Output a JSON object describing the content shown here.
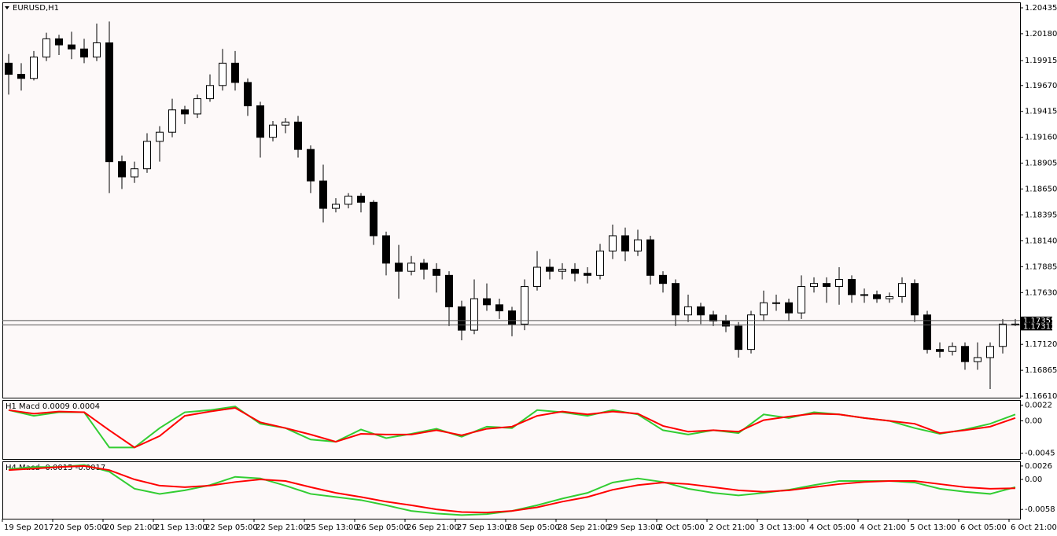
{
  "chart_data": [
    {
      "type": "candlestick",
      "title": "EURUSD,H1",
      "categories": [
        "19 Sep 2017",
        null,
        null,
        null,
        "20 Sep 05:00",
        null,
        null,
        null,
        "20 Sep 21:00",
        null,
        null,
        null,
        "21 Sep 13:00",
        null,
        null,
        null,
        "22 Sep 05:00",
        null,
        null,
        null,
        "22 Sep 21:00",
        null,
        null,
        null,
        "25 Sep 13:00",
        null,
        null,
        null,
        "26 Sep 05:00",
        null,
        null,
        null,
        "26 Sep 21:00",
        null,
        null,
        null,
        "27 Sep 13:00",
        null,
        null,
        null,
        "28 Sep 05:00",
        null,
        null,
        null,
        "28 Sep 21:00",
        null,
        null,
        null,
        "29 Sep 13:00",
        null,
        null,
        null,
        "2 Oct 05:00",
        null,
        null,
        null,
        "2 Oct 21:00",
        null,
        null,
        null,
        "3 Oct 13:00",
        null,
        null,
        null,
        "4 Oct 05:00",
        null,
        null,
        null,
        "4 Oct 21:00",
        null,
        null,
        null,
        "5 Oct 13:00",
        null,
        null,
        null,
        "6 Oct 05:00",
        null,
        null,
        null,
        "6 Oct 21:00"
      ],
      "open": [
        1.1989,
        1.1978,
        1.1974,
        1.1995,
        1.2013,
        1.2007,
        1.2003,
        1.1995,
        1.2009,
        1.1892,
        1.1877,
        1.1885,
        1.1912,
        1.1921,
        1.1943,
        1.1939,
        1.1954,
        1.1967,
        1.1989,
        1.197,
        1.1947,
        1.1916,
        1.1928,
        1.1931,
        1.1904,
        1.1873,
        1.1846,
        1.185,
        1.1858,
        1.1852,
        1.1819,
        1.1792,
        1.1784,
        1.1792,
        1.1786,
        1.178,
        1.1749,
        1.1726,
        1.1757,
        1.1751,
        1.1745,
        1.1732,
        1.1769,
        1.1788,
        1.1784,
        1.1786,
        1.1782,
        1.178,
        1.1804,
        1.1819,
        1.1804,
        1.1815,
        1.178,
        1.1772,
        1.1741,
        1.1749,
        1.1741,
        1.1735,
        1.173,
        1.1707,
        1.1741,
        1.1753,
        1.1753,
        1.1743,
        1.1769,
        1.1772,
        1.1769,
        1.1776,
        1.1761,
        1.1761,
        1.1757,
        1.1759,
        1.1772,
        1.1741,
        1.1707,
        1.1705,
        1.171,
        1.1695,
        1.1699,
        1.171,
        1.1732
      ],
      "high": [
        1.1998,
        1.1989,
        1.2001,
        1.2019,
        1.2017,
        1.202,
        1.2013,
        1.2028,
        1.203,
        1.1898,
        1.1892,
        1.192,
        1.1927,
        1.1954,
        1.1947,
        1.1958,
        1.1978,
        1.2003,
        1.2001,
        1.1974,
        1.1951,
        1.1932,
        1.1935,
        1.1937,
        1.1908,
        1.1889,
        1.1856,
        1.1861,
        1.1861,
        1.1854,
        1.1823,
        1.181,
        1.1799,
        1.1796,
        1.1792,
        1.1784,
        1.1755,
        1.1776,
        1.1772,
        1.1757,
        1.1749,
        1.1776,
        1.1804,
        1.1796,
        1.1792,
        1.1792,
        1.1788,
        1.1811,
        1.183,
        1.1827,
        1.1825,
        1.1819,
        1.1784,
        1.1776,
        1.1761,
        1.1753,
        1.1745,
        1.1741,
        1.1734,
        1.1745,
        1.1765,
        1.1761,
        1.1757,
        1.178,
        1.1778,
        1.1778,
        1.1788,
        1.178,
        1.1767,
        1.1765,
        1.1763,
        1.1778,
        1.1776,
        1.1745,
        1.1714,
        1.1714,
        1.1714,
        1.1714,
        1.1714,
        1.1737,
        1.1737
      ],
      "low": [
        1.1958,
        1.1962,
        1.1972,
        1.1991,
        1.1997,
        1.1993,
        1.1989,
        1.1991,
        1.1861,
        1.1865,
        1.1871,
        1.1881,
        1.1892,
        1.1916,
        1.1929,
        1.1935,
        1.1951,
        1.1962,
        1.1962,
        1.1937,
        1.1896,
        1.1912,
        1.192,
        1.1896,
        1.1861,
        1.1832,
        1.1842,
        1.1846,
        1.1842,
        1.181,
        1.178,
        1.1757,
        1.178,
        1.1776,
        1.1763,
        1.173,
        1.1716,
        1.1722,
        1.1745,
        1.1737,
        1.172,
        1.1726,
        1.1765,
        1.1776,
        1.1776,
        1.1774,
        1.1772,
        1.1776,
        1.1796,
        1.1794,
        1.1799,
        1.1771,
        1.1763,
        1.173,
        1.1734,
        1.1732,
        1.173,
        1.1724,
        1.1699,
        1.1703,
        1.1735,
        1.1745,
        1.1735,
        1.1737,
        1.1763,
        1.1753,
        1.1751,
        1.1753,
        1.1753,
        1.1753,
        1.1753,
        1.1753,
        1.1734,
        1.1703,
        1.1699,
        1.1701,
        1.1687,
        1.1687,
        1.1668,
        1.1703,
        1.173
      ],
      "close": [
        1.1978,
        1.1974,
        1.1995,
        1.2013,
        1.2007,
        1.2003,
        1.1995,
        1.2009,
        1.1892,
        1.1877,
        1.1885,
        1.1912,
        1.1921,
        1.1943,
        1.1939,
        1.1954,
        1.1967,
        1.1989,
        1.197,
        1.1947,
        1.1916,
        1.1928,
        1.1931,
        1.1904,
        1.1873,
        1.1846,
        1.185,
        1.1858,
        1.1852,
        1.1819,
        1.1792,
        1.1784,
        1.1792,
        1.1786,
        1.178,
        1.1749,
        1.1726,
        1.1757,
        1.1751,
        1.1745,
        1.1732,
        1.1769,
        1.1788,
        1.1784,
        1.1786,
        1.1782,
        1.178,
        1.1804,
        1.1819,
        1.1804,
        1.1815,
        1.178,
        1.1772,
        1.1741,
        1.1749,
        1.1741,
        1.1735,
        1.173,
        1.1707,
        1.1741,
        1.1753,
        1.1753,
        1.1743,
        1.1769,
        1.1772,
        1.1769,
        1.1776,
        1.1761,
        1.1761,
        1.1757,
        1.1759,
        1.1772,
        1.1741,
        1.1707,
        1.1705,
        1.171,
        1.1695,
        1.1699,
        1.171,
        1.1732,
        1.1731
      ],
      "up_color": "#ffffff",
      "down_color": "#000000",
      "ylim": [
        1.16595,
        1.20489
      ],
      "yticks": [
        1.20435,
        {
          "value": 1.2018,
          "label": "1.20180"
        },
        1.19915,
        {
          "value": 1.1967,
          "label": "1.19670"
        },
        1.19415,
        {
          "value": 1.1916,
          "label": "1.19160"
        },
        1.18905,
        {
          "value": 1.1865,
          "label": "1.18650"
        },
        1.18395,
        {
          "value": 1.1814,
          "label": "1.18140"
        },
        1.17885,
        {
          "value": 1.1763,
          "label": "1.17630"
        },
        {
          "value": 1.1712,
          "label": "1.17120"
        },
        1.16865,
        {
          "value": 1.1661,
          "label": "1.16610"
        }
      ],
      "price_lines": [
        1.17355,
        1.17312
      ],
      "grid": false
    },
    {
      "type": "line",
      "title": "H1 Macd 0.0009 0.0004",
      "series": [
        {
          "color": "#32cd32",
          "values": [
            0.0015,
            0.0007,
            0.0012,
            0.0012,
            -0.0037,
            -0.0037,
            -0.001,
            0.0012,
            0.0015,
            0.002,
            -0.0004,
            -0.001,
            -0.0026,
            -0.0029,
            -0.0012,
            -0.0024,
            -0.0018,
            -0.0011,
            -0.0022,
            -0.0008,
            -0.001,
            0.0015,
            0.0012,
            0.0007,
            0.0015,
            0.0009,
            -0.0013,
            -0.0019,
            -0.0013,
            -0.0017,
            0.0009,
            0.0004,
            0.0012,
            0.0009,
            0.0004,
            0,
            -0.001,
            -0.0018,
            -0.0012,
            -0.0004,
            0.0009
          ]
        },
        {
          "color": "#ff0000",
          "values": [
            0.0015,
            0.001,
            0.0013,
            0.0012,
            -0.0013,
            -0.0037,
            -0.0021,
            0.0007,
            0.0013,
            0.0018,
            -0.0002,
            -0.001,
            -0.0019,
            -0.0029,
            -0.0018,
            -0.0019,
            -0.0019,
            -0.0013,
            -0.002,
            -0.0011,
            -0.0008,
            0.0007,
            0.0013,
            0.0009,
            0.0013,
            0.001,
            -0.0007,
            -0.0015,
            -0.0013,
            -0.0015,
            0.0001,
            0.0006,
            0.001,
            0.0009,
            0.0004,
            0,
            -0.0004,
            -0.0017,
            -0.0013,
            -0.0008,
            0.0004
          ]
        }
      ],
      "ylim": [
        -0.0053,
        0.0029
      ],
      "yticks": [
        0.0022,
        {
          "value": 0,
          "label": "0.00"
        },
        -0.0045
      ]
    },
    {
      "type": "line",
      "title": "H4 Macd -0.0015 -0.0017",
      "series": [
        {
          "color": "#32cd32",
          "values": [
            0.002,
            0.0024,
            0.0024,
            0.0028,
            0.0015,
            -0.0018,
            -0.0028,
            -0.0021,
            -0.0011,
            0.0005,
            0.0002,
            -0.0012,
            -0.0028,
            -0.0034,
            -0.004,
            -0.005,
            -0.0061,
            -0.0066,
            -0.0069,
            -0.0067,
            -0.0061,
            -0.005,
            -0.0037,
            -0.0026,
            -0.0006,
            0.0002,
            -0.0005,
            -0.0018,
            -0.0026,
            -0.0031,
            -0.0026,
            -0.002,
            -0.0011,
            -0.0003,
            -0.0003,
            -0.0003,
            -0.0006,
            -0.0018,
            -0.0024,
            -0.0028,
            -0.0015
          ]
        },
        {
          "color": "#ff0000",
          "values": [
            0.0018,
            0.0021,
            0.0024,
            0.0026,
            0.0018,
            0,
            -0.0012,
            -0.0015,
            -0.0012,
            -0.0005,
            0,
            -0.0003,
            -0.0015,
            -0.0026,
            -0.0034,
            -0.0043,
            -0.005,
            -0.0058,
            -0.0063,
            -0.0064,
            -0.0061,
            -0.0054,
            -0.0043,
            -0.0034,
            -0.002,
            -0.0011,
            -0.0006,
            -0.0009,
            -0.0015,
            -0.0021,
            -0.0024,
            -0.0021,
            -0.0015,
            -0.0009,
            -0.0005,
            -0.0003,
            -0.0003,
            -0.0009,
            -0.0015,
            -0.0018,
            -0.0017
          ]
        }
      ],
      "ylim": [
        -0.0076,
        0.0035
      ],
      "yticks": [
        0.0026,
        {
          "value": 0,
          "label": "0.00"
        },
        -0.0058
      ]
    }
  ]
}
